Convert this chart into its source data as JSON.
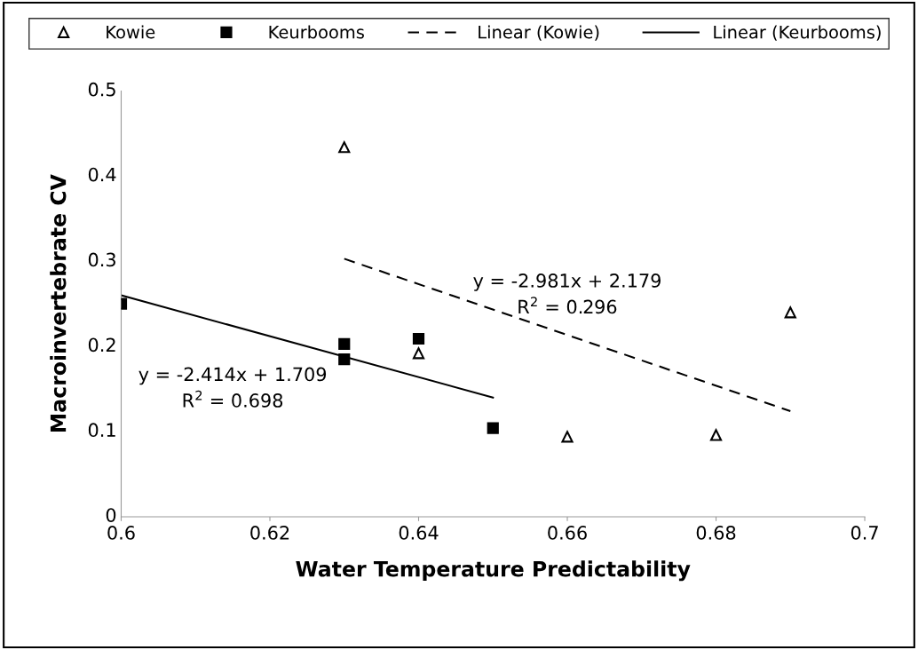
{
  "chart_data": {
    "type": "scatter",
    "xlabel": "Water Temperature Predictability",
    "ylabel": "Macroinvertebrate CV",
    "xlim": [
      0.6,
      0.7
    ],
    "xticks": [
      0.6,
      0.62,
      0.64,
      0.66,
      0.68,
      0.7
    ],
    "ylim": [
      0,
      0.5
    ],
    "yticks": [
      0,
      0.1,
      0.2,
      0.3,
      0.4,
      0.5
    ],
    "grid": false,
    "legend": "top",
    "series": [
      {
        "name": "Kowie",
        "marker": "triangle",
        "color": "#000000",
        "x": [
          0.63,
          0.64,
          0.66,
          0.68,
          0.69
        ],
        "values": [
          0.434,
          0.192,
          0.094,
          0.096,
          0.24
        ]
      },
      {
        "name": "Keurbooms",
        "marker": "square",
        "color": "#000000",
        "x": [
          0.6,
          0.63,
          0.63,
          0.64,
          0.65
        ],
        "values": [
          0.25,
          0.203,
          0.185,
          0.209,
          0.104
        ]
      },
      {
        "name": "Linear (Kowie)",
        "type": "line",
        "line_style": "dashed",
        "color": "#000000",
        "x": [
          0.63,
          0.69
        ],
        "values": [
          0.303,
          0.124
        ]
      },
      {
        "name": "Linear (Keurbooms)",
        "type": "line",
        "line_style": "solid",
        "color": "#000000",
        "x": [
          0.6,
          0.65
        ],
        "values": [
          0.26,
          0.14
        ]
      }
    ],
    "annotations": [
      "y = -2.981x + 2.179\nR$^{2}$ = 0.296",
      "y = -2.414x + 1.709\nR$^{2}$ = 0.698"
    ]
  }
}
